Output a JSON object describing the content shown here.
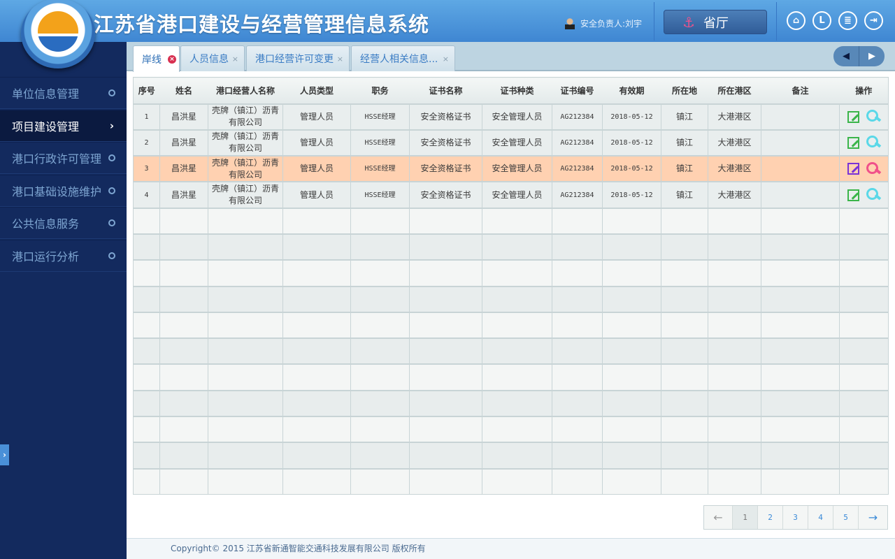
{
  "header": {
    "title": "江苏省港口建设与经营管理信息系统",
    "user": "安全负责人:刘宇",
    "province_button": "省厅",
    "icons": [
      "home-icon",
      "clock-icon",
      "notepad-icon",
      "logout-icon"
    ]
  },
  "sidebar": {
    "items": [
      {
        "label": "单位信息管理",
        "active": false
      },
      {
        "label": "项目建设管理",
        "active": true
      },
      {
        "label": "港口行政许可管理",
        "active": false
      },
      {
        "label": "港口基础设施维护",
        "active": false
      },
      {
        "label": "公共信息服务",
        "active": false
      },
      {
        "label": "港口运行分析",
        "active": false
      }
    ]
  },
  "tabs": [
    {
      "label": "岸线",
      "active": true
    },
    {
      "label": "人员信息"
    },
    {
      "label": "港口经营许可变更"
    },
    {
      "label": "经营人相关信息..."
    }
  ],
  "table": {
    "columns": [
      "序号",
      "姓名",
      "港口经营人名称",
      "人员类型",
      "职务",
      "证书名称",
      "证书种类",
      "证书编号",
      "有效期",
      "所在地",
      "所在港区",
      "备注",
      "操作"
    ],
    "rows": [
      [
        "1",
        "昌洪星",
        "壳牌（镇江）沥青有限公司",
        "管理人员",
        "HSSE经理",
        "安全资格证书",
        "安全管理人员",
        "AG212384",
        "2018-05-12",
        "镇江",
        "大港港区",
        ""
      ],
      [
        "2",
        "昌洪星",
        "壳牌（镇江）沥青有限公司",
        "管理人员",
        "HSSE经理",
        "安全资格证书",
        "安全管理人员",
        "AG212384",
        "2018-05-12",
        "镇江",
        "大港港区",
        ""
      ],
      [
        "3",
        "昌洪星",
        "壳牌（镇江）沥青有限公司",
        "管理人员",
        "HSSE经理",
        "安全资格证书",
        "安全管理人员",
        "AG212384",
        "2018-05-12",
        "镇江",
        "大港港区",
        ""
      ],
      [
        "4",
        "昌洪星",
        "壳牌（镇江）沥青有限公司",
        "管理人员",
        "HSSE经理",
        "安全资格证书",
        "安全管理人员",
        "AG212384",
        "2018-05-12",
        "镇江",
        "大港港区",
        ""
      ]
    ],
    "selected_row": 3,
    "colors": {
      "selected": "#ffd1b1",
      "edit": "#3bb54a",
      "view": "#5ad8e8"
    }
  },
  "pager": {
    "prev": "←",
    "pages": [
      "1",
      "2",
      "3",
      "4",
      "5"
    ],
    "current": "1",
    "next": "→"
  },
  "footer": {
    "text": "Copyright© 2015 江苏省新通智能交通科技发展有限公司 版权所有"
  }
}
